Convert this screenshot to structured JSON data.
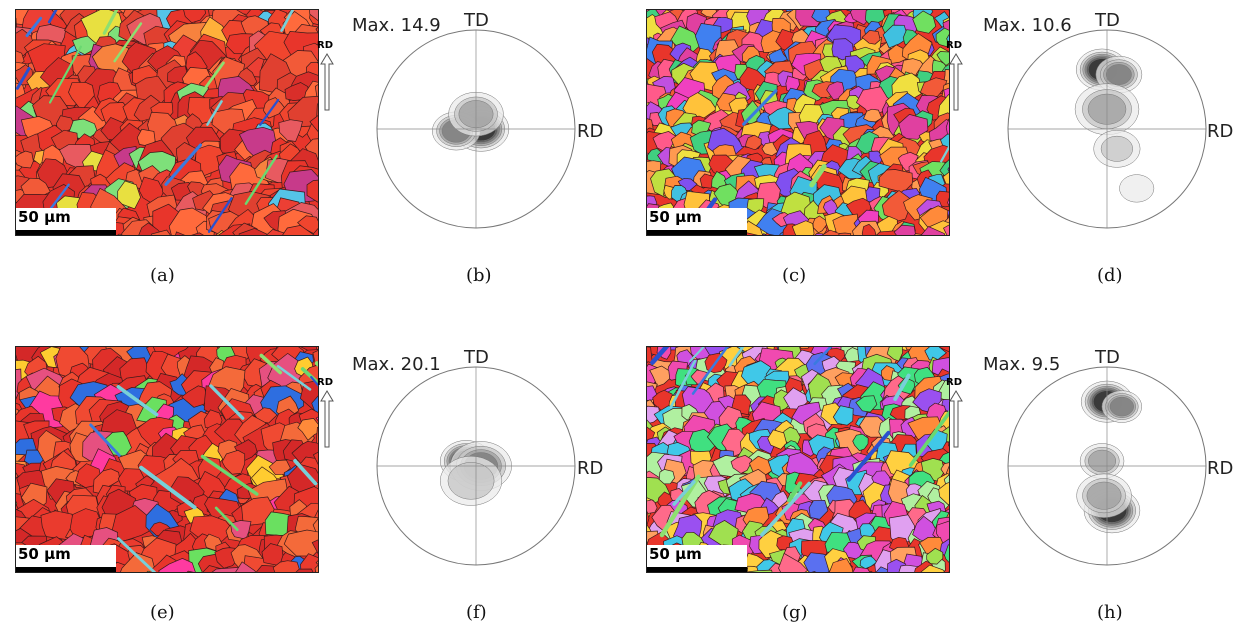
{
  "panels": [
    {
      "caption": "(a)",
      "scale": "50 µm",
      "rd": "RD",
      "palette": "red",
      "seed": 3
    },
    {
      "caption": "(b)",
      "max": "Max. 14.9",
      "td": "TD",
      "rd": "RD",
      "blobs": [
        [
          0.05,
          0.0,
          1.0,
          0.13
        ],
        [
          -0.2,
          0.02,
          0.7,
          0.12
        ],
        [
          0.0,
          -0.15,
          0.5,
          0.15
        ]
      ]
    },
    {
      "caption": "(c)",
      "scale": "50 µm",
      "rd": "RD",
      "palette": "mixed",
      "seed": 11
    },
    {
      "caption": "(d)",
      "max": "Max. 10.6",
      "td": "TD",
      "rd": "RD",
      "blobs": [
        [
          -0.05,
          -0.6,
          1.0,
          0.12
        ],
        [
          0.12,
          -0.55,
          0.6,
          0.12
        ],
        [
          0.0,
          -0.2,
          0.45,
          0.18
        ],
        [
          0.1,
          0.2,
          0.3,
          0.15
        ],
        [
          0.3,
          0.6,
          0.25,
          0.12
        ]
      ]
    },
    {
      "caption": "(e)",
      "scale": "50 µm",
      "rd": "RD",
      "palette": "red2",
      "seed": 21
    },
    {
      "caption": "(f)",
      "max": "Max. 20.1",
      "td": "TD",
      "rd": "RD",
      "blobs": [
        [
          -0.1,
          -0.05,
          1.0,
          0.12
        ],
        [
          0.05,
          0.0,
          0.6,
          0.16
        ],
        [
          -0.05,
          0.15,
          0.4,
          0.18
        ]
      ]
    },
    {
      "caption": "(g)",
      "scale": "50 µm",
      "rd": "RD",
      "palette": "mixed2",
      "seed": 37
    },
    {
      "caption": "(h)",
      "max": "Max. 9.5",
      "td": "TD",
      "rd": "RD",
      "blobs": [
        [
          0.0,
          -0.65,
          1.0,
          0.12
        ],
        [
          0.15,
          -0.6,
          0.7,
          0.1
        ],
        [
          0.05,
          0.45,
          1.0,
          0.13
        ],
        [
          -0.05,
          -0.05,
          0.5,
          0.12
        ],
        [
          -0.03,
          0.3,
          0.5,
          0.15
        ]
      ]
    }
  ]
}
